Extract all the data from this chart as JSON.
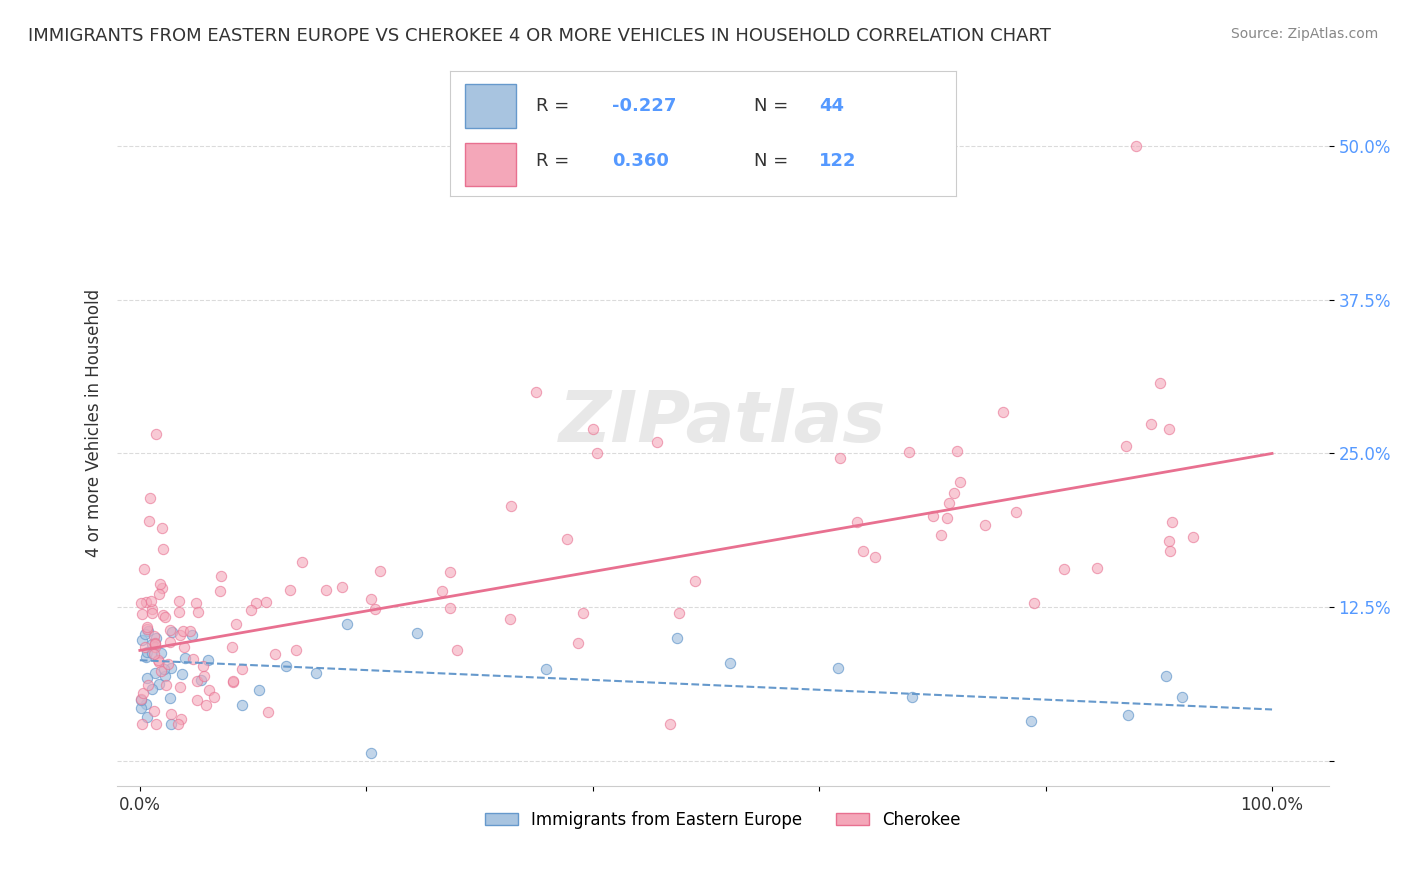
{
  "title": "IMMIGRANTS FROM EASTERN EUROPE VS CHEROKEE 4 OR MORE VEHICLES IN HOUSEHOLD CORRELATION CHART",
  "source": "Source: ZipAtlas.com",
  "ylabel": "4 or more Vehicles in Household",
  "series": [
    {
      "label": "Immigrants from Eastern Europe",
      "color": "#a8c4e0",
      "edge_color": "#6699cc",
      "R": -0.227,
      "N": 44,
      "line_color": "#6699cc",
      "line_style": "--",
      "trend_slope": -0.0004,
      "trend_intercept": 0.082
    },
    {
      "label": "Cherokee",
      "color": "#f4a7b9",
      "edge_color": "#e87090",
      "R": 0.36,
      "N": 122,
      "line_color": "#e87090",
      "line_style": "-",
      "trend_slope": 0.0016,
      "trend_intercept": 0.09
    }
  ],
  "background_color": "#ffffff",
  "grid_color": "#cccccc",
  "watermark": "ZIPatlas"
}
